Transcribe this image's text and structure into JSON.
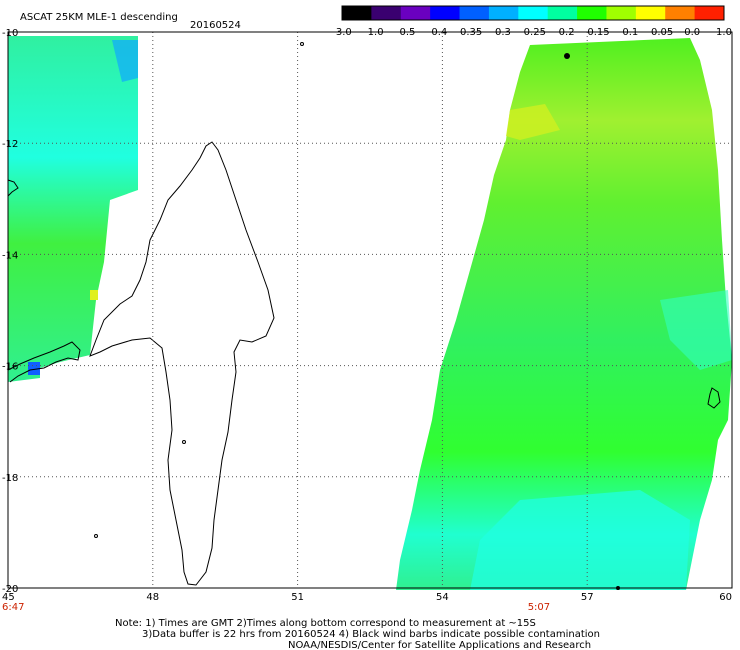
{
  "header": {
    "title": "ASCAT 25KM MLE-1 descending",
    "date": "20160524"
  },
  "colorbar": {
    "labels": [
      "-3.0",
      "-1.0",
      "-0.5",
      "-0.4",
      "-0.35",
      "-0.3",
      "-0.25",
      "-0.2",
      "-0.15",
      "-0.1",
      "-0.05",
      "0.0",
      "1.0"
    ],
    "colors": [
      "#000000",
      "#3a0070",
      "#6a00c0",
      "#0000ff",
      "#0060ff",
      "#00b0ff",
      "#00ffff",
      "#00ffa0",
      "#20ff00",
      "#a0ff00",
      "#ffff00",
      "#ff8000",
      "#ff2000"
    ]
  },
  "map": {
    "lon_ticks": [
      "45",
      "48",
      "51",
      "54",
      "57",
      "60"
    ],
    "lat_ticks": [
      "-10",
      "-12",
      "-14",
      "-16",
      "-18",
      "-20"
    ],
    "lon_range": [
      45,
      60
    ],
    "lat_range": [
      -20,
      -10
    ],
    "times": [
      {
        "label": "6:47",
        "lon": 45
      },
      {
        "label": "5:07",
        "lon": 56
      }
    ],
    "swath_colors": {
      "green": "#40f020",
      "cyan": "#20ffd0",
      "teal": "#30f080",
      "light_green": "#80f040",
      "yellow": "#e0f020",
      "blue": "#1070ff"
    }
  },
  "footer": {
    "line1": "Note: 1) Times are GMT 2)Times along bottom correspond to measurement at ~15S",
    "line2": "3)Data buffer is 22 hrs from 20160524 4) Black wind barbs indicate possible contamination",
    "line3": "NOAA/NESDIS/Center for Satellite Applications and Research"
  }
}
